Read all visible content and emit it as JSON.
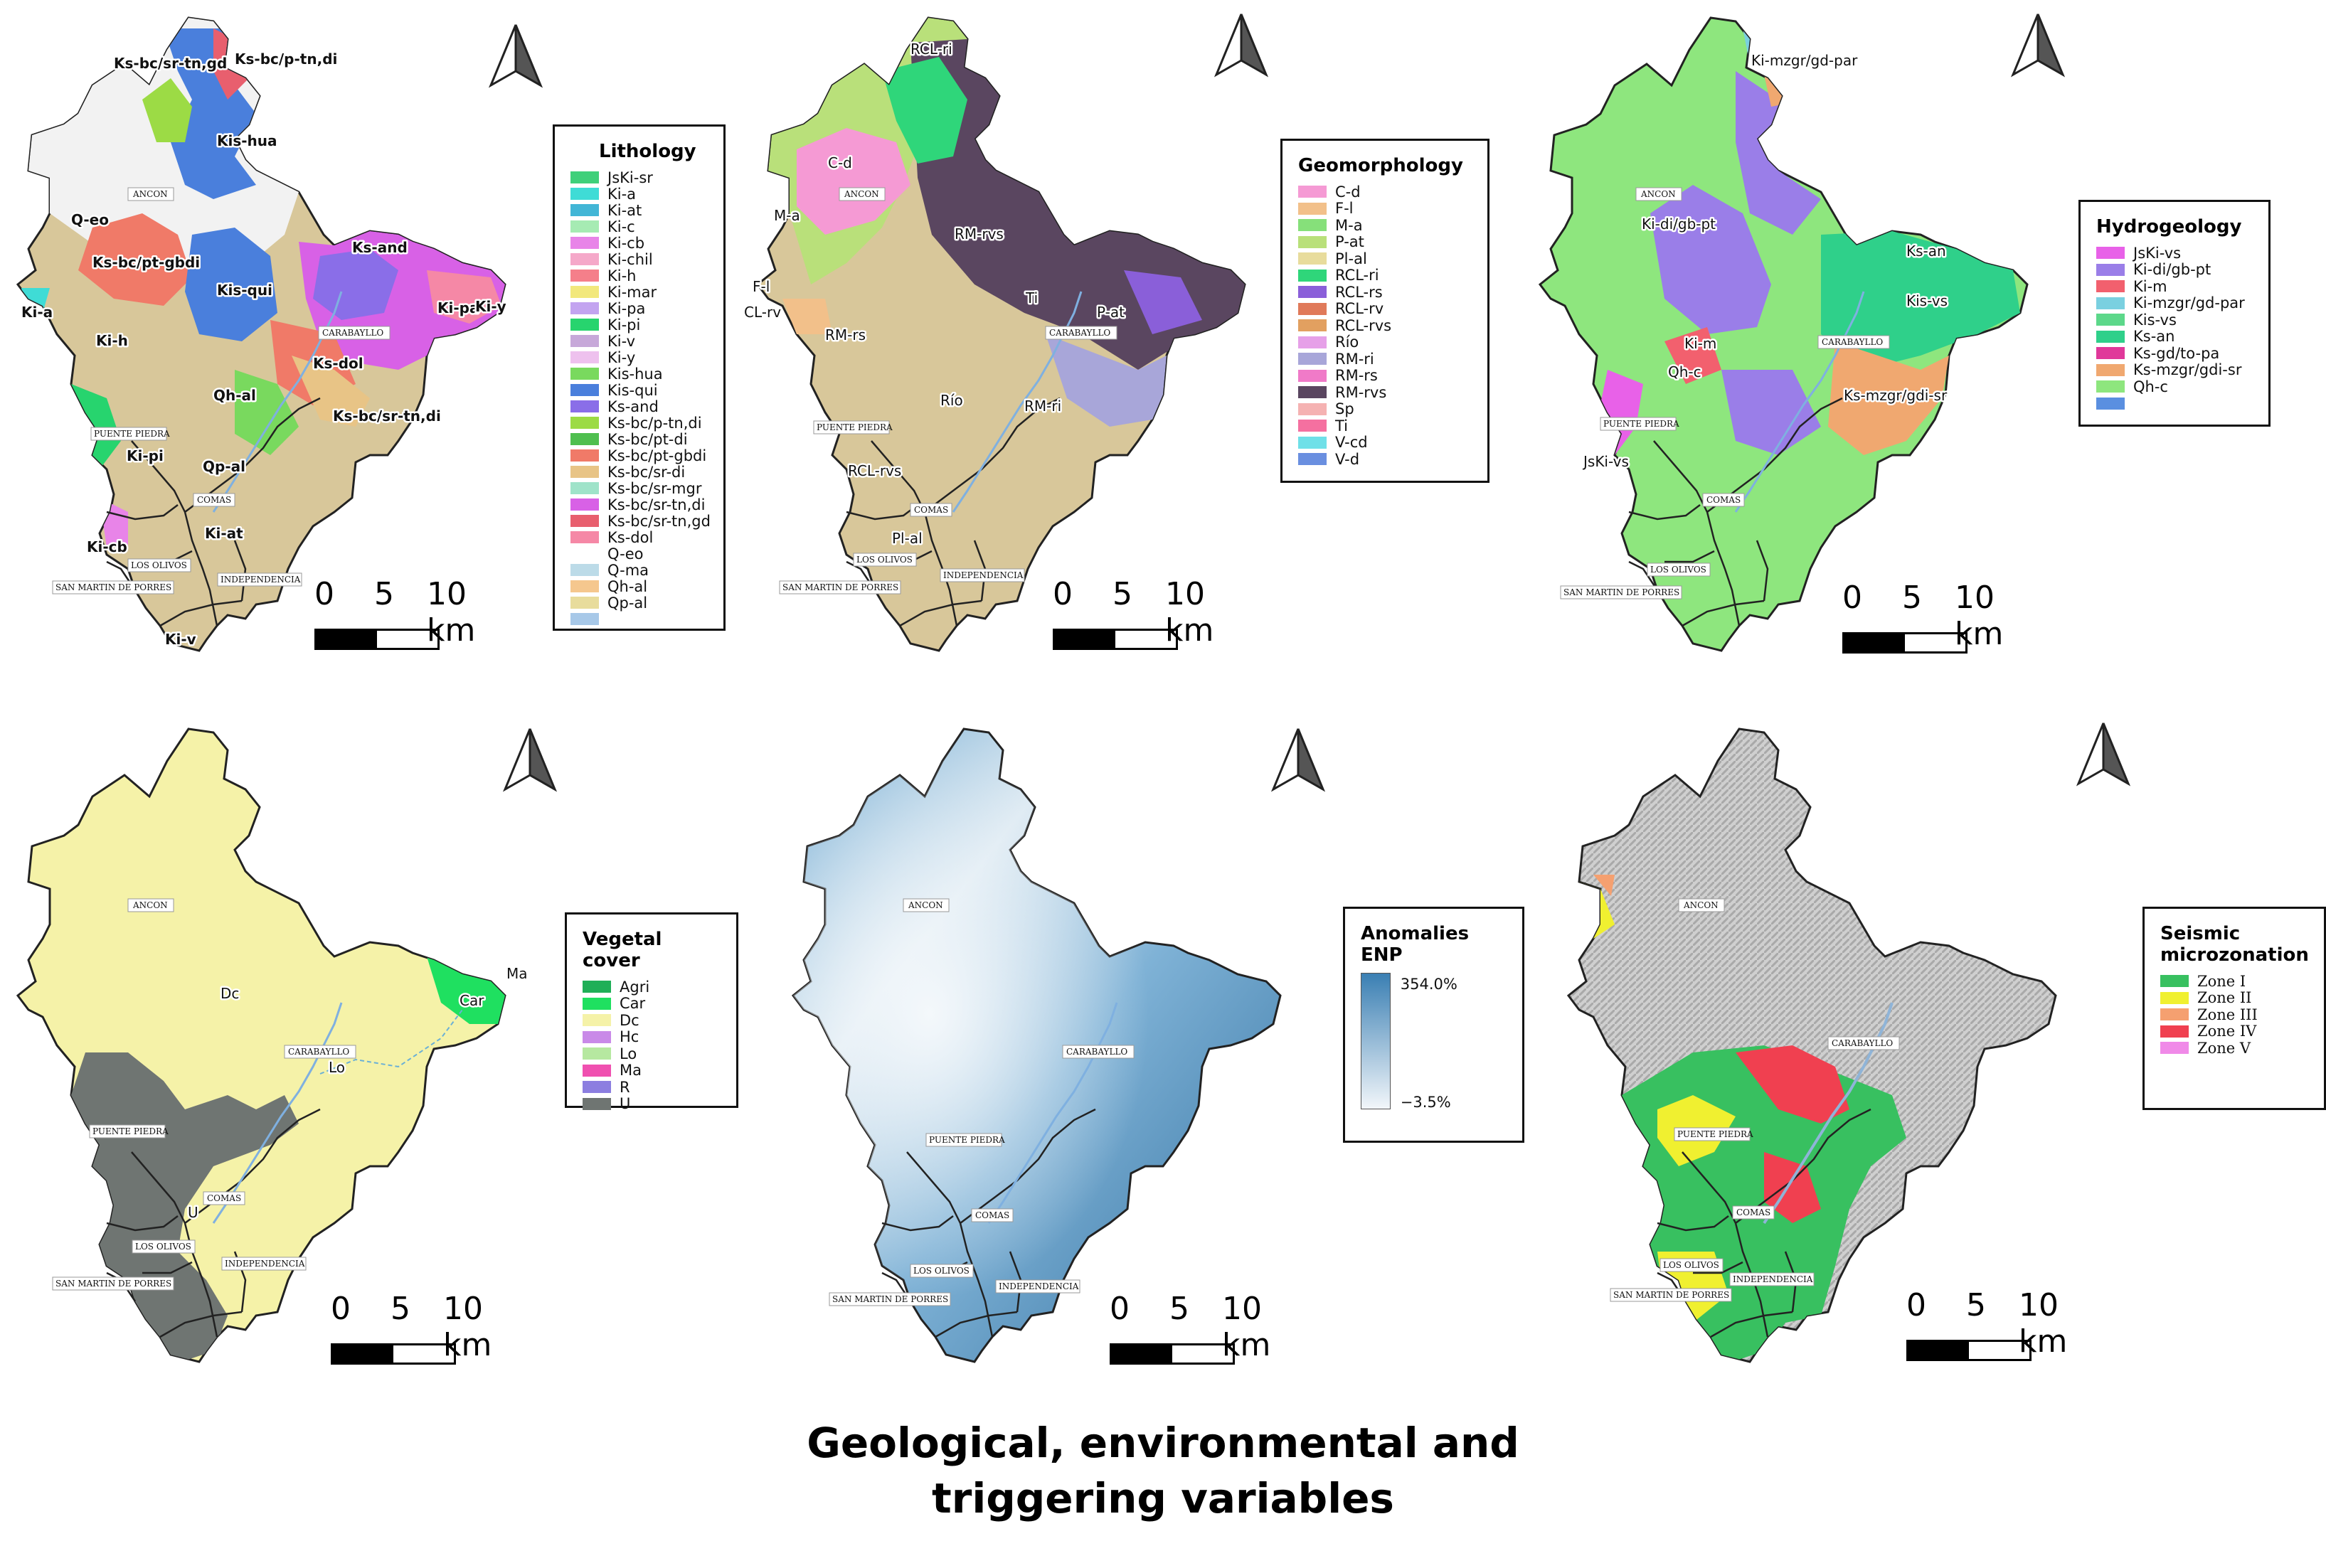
{
  "title_line1": "Geological, environmental and",
  "title_line2": "triggering variables",
  "scale": {
    "n0": "0",
    "n5": "5",
    "n10": "10 km"
  },
  "towns": {
    "ancon": "ANCON",
    "carabayllo": "CARABAYLLO",
    "puente": "PUENTE PIEDRA",
    "comas": "COMAS",
    "olivos": "LOS OLIVOS",
    "indep": "INDEPENDENCIA",
    "smp": "SAN MARTIN DE PORRES"
  },
  "panels": {
    "lithology": {
      "legend_title": "Lithology",
      "items": [
        {
          "label": "JsKi-sr",
          "color": "#3fd07a"
        },
        {
          "label": "Ki-a",
          "color": "#3fdcd6"
        },
        {
          "label": "Ki-at",
          "color": "#42b6d6"
        },
        {
          "label": "Ki-c",
          "color": "#a6ebb3"
        },
        {
          "label": "Ki-cb",
          "color": "#e884e8"
        },
        {
          "label": "Ki-chil",
          "color": "#f5a8c9"
        },
        {
          "label": "Ki-h",
          "color": "#f57f8a"
        },
        {
          "label": "Ki-mar",
          "color": "#f2e87c"
        },
        {
          "label": "Ki-pa",
          "color": "#c3a4f0"
        },
        {
          "label": "Ki-pi",
          "color": "#27d46e"
        },
        {
          "label": "Ki-v",
          "color": "#c7a8d9"
        },
        {
          "label": "Ki-y",
          "color": "#eec1ee"
        },
        {
          "label": "Kis-hua",
          "color": "#79d95e"
        },
        {
          "label": "Kis-qui",
          "color": "#4a7fdc"
        },
        {
          "label": "Ks-and",
          "color": "#8a6ee8"
        },
        {
          "label": "Ks-bc/p-tn,di",
          "color": "#9cdb45"
        },
        {
          "label": "Ks-bc/pt-di",
          "color": "#4fbf4f"
        },
        {
          "label": "Ks-bc/pt-gbdi",
          "color": "#f07a68"
        },
        {
          "label": "Ks-bc/sr-di",
          "color": "#e8c486"
        },
        {
          "label": "Ks-bc/sr-mgr",
          "color": "#9fe3c9"
        },
        {
          "label": "Ks-bc/sr-tn,di",
          "color": "#d861e6"
        },
        {
          "label": "Ks-bc/sr-tn,gd",
          "color": "#e85f6e"
        },
        {
          "label": "Ks-dol",
          "color": "#f588a6"
        },
        {
          "label": "Q-eo",
          "color": "#ffffff"
        },
        {
          "label": "Q-ma",
          "color": "#bcdbe8"
        },
        {
          "label": "Qh-al",
          "color": "#f5c78e"
        },
        {
          "label": "Qp-al",
          "color": "#e8dc9c"
        },
        {
          "label": "",
          "color": "#a7c8e8"
        }
      ],
      "labels": [
        "Ks-bc/sr-tn,gd",
        "Ks-bc/p-tn,di",
        "Kis-hua",
        "Q-eo",
        "Ks-bc/pt-gbdi",
        "Kis-qui",
        "Ks-and",
        "Ki-pa",
        "Ki-y",
        "Ki-a",
        "Ki-h",
        "Ks-dol",
        "Qh-al",
        "Ks-bc/sr-tn,di",
        "Ki-pi",
        "Qp-al",
        "Ki-at",
        "Ki-cb",
        "Ki-v"
      ]
    },
    "geomorphology": {
      "legend_title": "Geomorphology",
      "items": [
        {
          "label": "C-d",
          "color": "#f59ad4"
        },
        {
          "label": "F-l",
          "color": "#f2c08a"
        },
        {
          "label": "M-a",
          "color": "#86e07a"
        },
        {
          "label": "P-at",
          "color": "#b9e07a"
        },
        {
          "label": "Pl-al",
          "color": "#e8dc9c"
        },
        {
          "label": "RCL-ri",
          "color": "#2fd67a"
        },
        {
          "label": "RCL-rs",
          "color": "#8a5fd9"
        },
        {
          "label": "RCL-rv",
          "color": "#e07a5a"
        },
        {
          "label": "RCL-rvs",
          "color": "#e2a060"
        },
        {
          "label": "Río",
          "color": "#e6a0e8"
        },
        {
          "label": "RM-ri",
          "color": "#a8a6d9"
        },
        {
          "label": "RM-rs",
          "color": "#f07ac8"
        },
        {
          "label": "RM-rvs",
          "color": "#5a4660"
        },
        {
          "label": "Sp",
          "color": "#f5b2b2"
        },
        {
          "label": "Ti",
          "color": "#f570a0"
        },
        {
          "label": "V-cd",
          "color": "#6fe0e8"
        },
        {
          "label": "V-d",
          "color": "#6a8fe0"
        }
      ],
      "labels": [
        "RCL-ri",
        "C-d",
        "M-a",
        "RM-rvs",
        "F-l",
        "CL-rv",
        "RM-rs",
        "Ti",
        "P-at",
        "Río",
        "RM-ri",
        "RCL-rvs",
        "Pl-al"
      ]
    },
    "hydrogeology": {
      "legend_title": "Hydrogeology",
      "items": [
        {
          "label": "JsKi-vs",
          "color": "#e861e8"
        },
        {
          "label": "Ki-di/gb-pt",
          "color": "#9a7ee8"
        },
        {
          "label": "Ki-m",
          "color": "#f2606e"
        },
        {
          "label": "Ki-mzgr/gd-par",
          "color": "#7ad0e0"
        },
        {
          "label": "Kis-vs",
          "color": "#5cd88a"
        },
        {
          "label": "Ks-an",
          "color": "#2fd08a"
        },
        {
          "label": "Ks-gd/to-pa",
          "color": "#e0389a"
        },
        {
          "label": "Ks-mzgr/gdi-sr",
          "color": "#f0a870"
        },
        {
          "label": "Qh-c",
          "color": "#8ee67e"
        },
        {
          "label": "",
          "color": "#5a8fe0"
        }
      ],
      "labels": [
        "Ki-mzgr/gd-par",
        "Ki-di/gb-pt",
        "Ks-an",
        "Kis-vs",
        "Ki-m",
        "Qh-c",
        "Ks-mzgr/gdi-sr",
        "JsKi-vs"
      ]
    },
    "vegetal": {
      "legend_title": "Vegetal cover",
      "items": [
        {
          "label": "Agri",
          "color": "#1faf57"
        },
        {
          "label": "Car",
          "color": "#1fe060"
        },
        {
          "label": "Dc",
          "color": "#f5f2a8"
        },
        {
          "label": "Hc",
          "color": "#c98ae8"
        },
        {
          "label": "Lo",
          "color": "#b6e8a0"
        },
        {
          "label": "Ma",
          "color": "#f050b0"
        },
        {
          "label": "R",
          "color": "#8c7ee0"
        },
        {
          "label": "U",
          "color": "#6f7572"
        }
      ],
      "labels": [
        "Ma",
        "Car",
        "Dc",
        "Lo",
        "U"
      ]
    },
    "enp": {
      "legend_title": "Anomalies ENP",
      "max_label": "354.0%",
      "min_label": "−3.5%"
    },
    "seismic": {
      "legend_title": "Seismic microzonation",
      "items": [
        {
          "label": "Zone I",
          "color": "#38c060"
        },
        {
          "label": "Zone II",
          "color": "#f0f030"
        },
        {
          "label": "Zone III",
          "color": "#f5a070"
        },
        {
          "label": "Zone IV",
          "color": "#f04050"
        },
        {
          "label": "Zone V",
          "color": "#f08ae8"
        }
      ]
    }
  }
}
